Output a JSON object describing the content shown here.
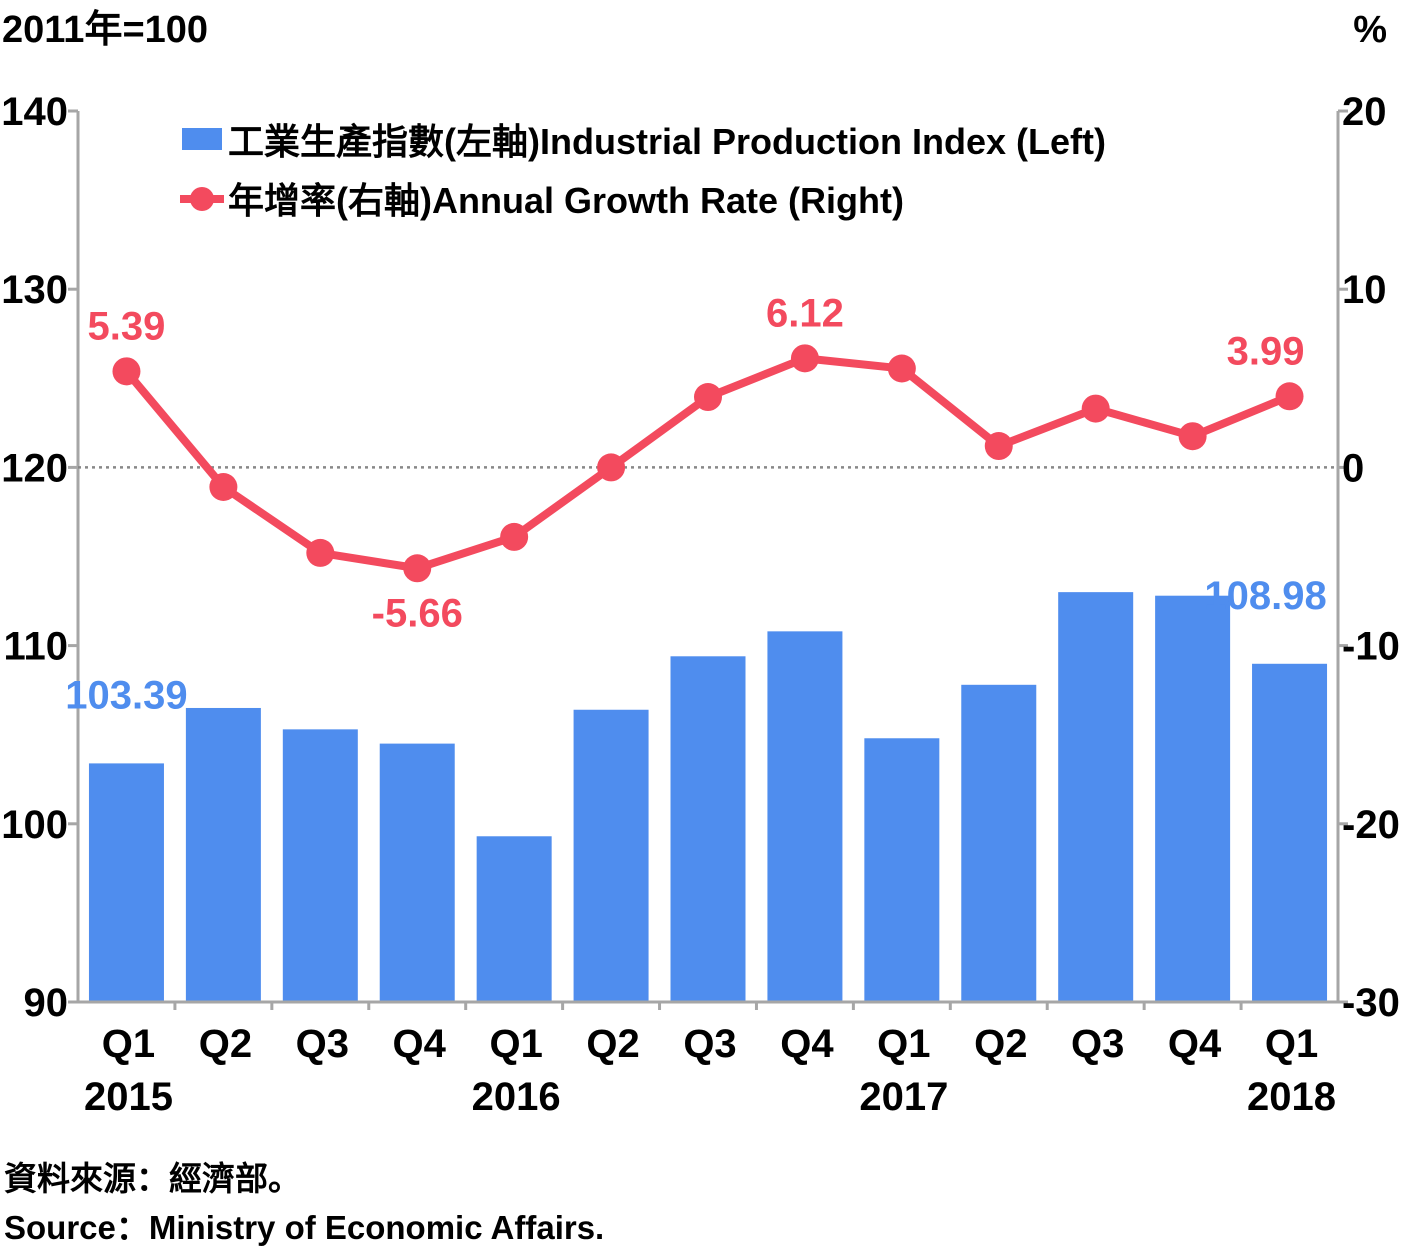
{
  "chart_data": {
    "type": "bar",
    "left_unit": "2011年=100",
    "right_unit": "%",
    "categories": [
      "Q1",
      "Q2",
      "Q3",
      "Q4",
      "Q1",
      "Q2",
      "Q3",
      "Q4",
      "Q1",
      "Q2",
      "Q3",
      "Q4",
      "Q1"
    ],
    "years": [
      {
        "label": "2015",
        "index": 0
      },
      {
        "label": "2016",
        "index": 4
      },
      {
        "label": "2017",
        "index": 8
      },
      {
        "label": "2018",
        "index": 12
      }
    ],
    "left_axis": {
      "min": 90,
      "max": 140,
      "ticks": [
        90,
        100,
        110,
        120,
        130,
        140
      ]
    },
    "right_axis": {
      "min": -30,
      "max": 20,
      "ticks": [
        -30,
        -20,
        -10,
        0,
        10,
        20
      ]
    },
    "series": [
      {
        "name": "工業生產指數(左軸)Industrial Production Index (Left)",
        "type": "bar",
        "axis": "left",
        "color": "#4f8dee",
        "values": [
          103.39,
          106.5,
          105.3,
          104.5,
          99.3,
          106.4,
          109.4,
          110.8,
          104.8,
          107.8,
          113.0,
          112.8,
          108.98
        ]
      },
      {
        "name": "年增率(右軸)Annual Growth Rate (Right)",
        "type": "line",
        "axis": "right",
        "color": "#f34a5e",
        "values": [
          5.39,
          -1.1,
          -4.8,
          -5.66,
          -3.9,
          0.0,
          3.95,
          6.12,
          5.55,
          1.2,
          3.3,
          1.75,
          3.99
        ]
      }
    ],
    "data_labels": [
      {
        "series": 0,
        "index": 0,
        "text": "103.39"
      },
      {
        "series": 0,
        "index": 12,
        "text": "108.98"
      },
      {
        "series": 1,
        "index": 0,
        "text": "5.39"
      },
      {
        "series": 1,
        "index": 3,
        "text": "-5.66"
      },
      {
        "series": 1,
        "index": 7,
        "text": "6.12"
      },
      {
        "series": 1,
        "index": 12,
        "text": "3.99"
      }
    ],
    "zero_reference_line": true,
    "grid": false,
    "legend_position": "top-center"
  },
  "source": {
    "zh": "資料來源：經濟部。",
    "en": "Source：Ministry of Economic Affairs."
  }
}
